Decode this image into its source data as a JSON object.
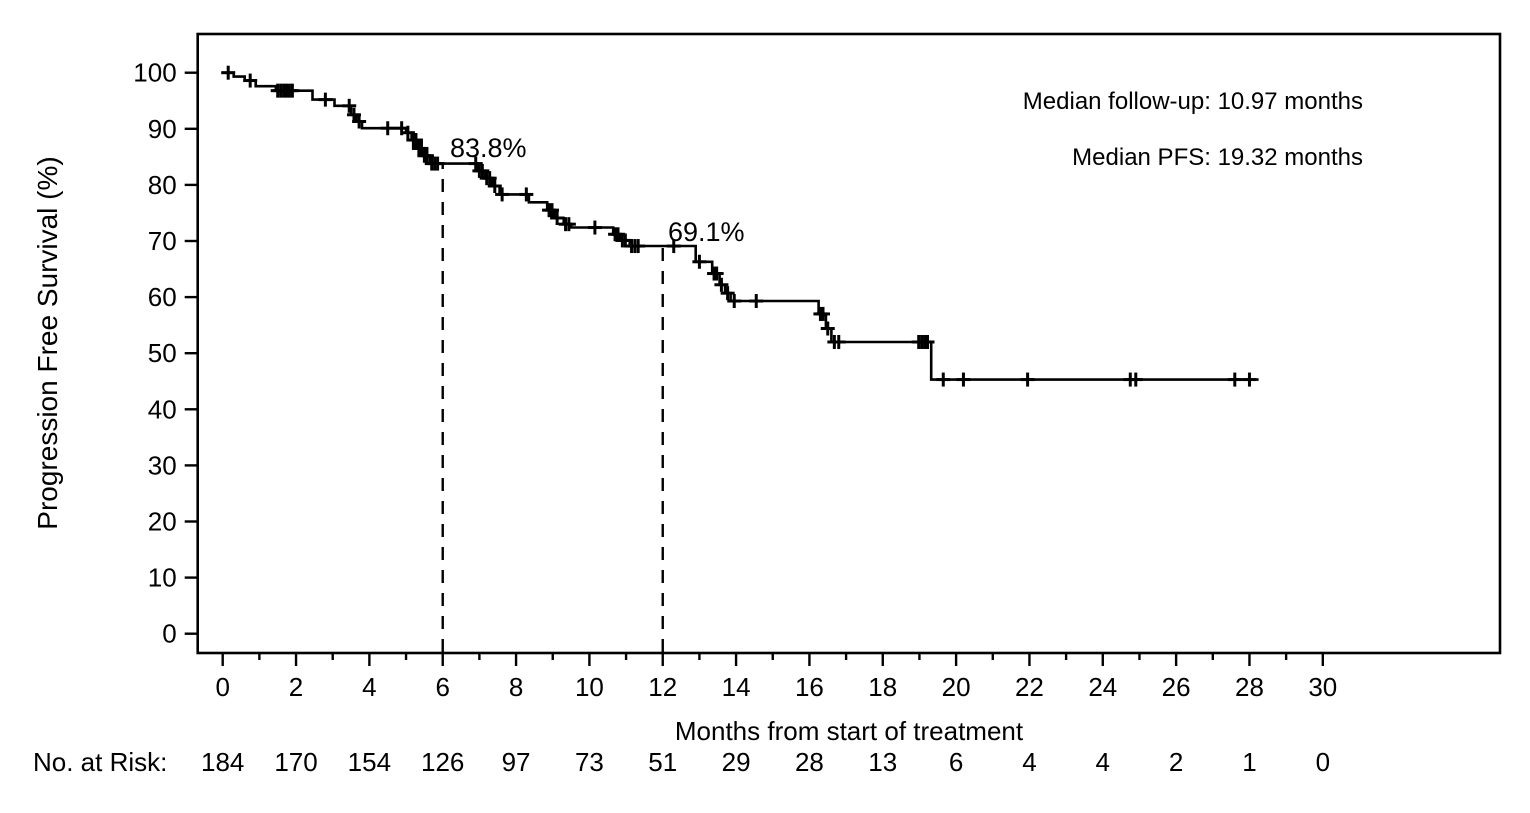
{
  "page": {
    "background": "#ffffff",
    "ink_color": "#000000"
  },
  "chart_data": {
    "type": "line",
    "subtype": "kaplan_meier_step_curve",
    "title": "",
    "xlabel": "Months from start of treatment",
    "ylabel": "Progression Free Survival (%)",
    "xlim": [
      0,
      34.8
    ],
    "ylim": [
      0,
      100
    ],
    "grid": false,
    "x_major_ticks": [
      0,
      2,
      4,
      6,
      8,
      10,
      12,
      14,
      16,
      18,
      20,
      22,
      24,
      26,
      28,
      30
    ],
    "x_minor_ticks": [
      1,
      3,
      5,
      7,
      9,
      11,
      13,
      15,
      17,
      19,
      21,
      23,
      25,
      27,
      29
    ],
    "y_ticks": [
      0,
      10,
      20,
      30,
      40,
      50,
      60,
      70,
      80,
      90,
      100
    ],
    "annotations": [
      "Median follow-up: 10.97 months",
      "Median PFS: 19.32 months"
    ],
    "reference_lines": [
      {
        "x": 6,
        "y_top": 83.8,
        "style": "dashed",
        "label": "83.8%"
      },
      {
        "x": 12,
        "y_top": 69.1,
        "style": "dashed",
        "label": "69.1%"
      }
    ],
    "series": [
      {
        "name": "Progression Free Survival",
        "color": "#000000",
        "steps": [
          [
            0,
            100
          ],
          [
            0.3,
            99.3
          ],
          [
            0.6,
            98.6
          ],
          [
            0.9,
            97.6
          ],
          [
            1.45,
            96.8
          ],
          [
            2.45,
            95.2
          ],
          [
            3.05,
            94.1
          ],
          [
            3.5,
            92.5
          ],
          [
            3.65,
            91.3
          ],
          [
            3.8,
            90.1
          ],
          [
            5.0,
            89.3
          ],
          [
            5.15,
            88.0
          ],
          [
            5.3,
            86.5
          ],
          [
            5.45,
            85.2
          ],
          [
            5.65,
            83.8
          ],
          [
            6.95,
            82.5
          ],
          [
            7.15,
            81.2
          ],
          [
            7.35,
            79.8
          ],
          [
            7.55,
            78.3
          ],
          [
            8.35,
            76.9
          ],
          [
            8.85,
            75.5
          ],
          [
            9.05,
            74.1
          ],
          [
            9.3,
            73.0
          ],
          [
            9.5,
            72.4
          ],
          [
            10.65,
            71.2
          ],
          [
            10.85,
            70.1
          ],
          [
            11.1,
            69.1
          ],
          [
            12.9,
            66.3
          ],
          [
            13.35,
            64.2
          ],
          [
            13.55,
            62.2
          ],
          [
            13.7,
            60.7
          ],
          [
            13.85,
            59.3
          ],
          [
            16.25,
            57.0
          ],
          [
            16.45,
            54.4
          ],
          [
            16.6,
            52.0
          ],
          [
            19.32,
            45.3
          ],
          [
            28.25,
            45.3
          ]
        ],
        "censor_marks": [
          [
            0.15,
            100
          ],
          [
            0.75,
            98.6
          ],
          [
            1.5,
            96.8
          ],
          [
            1.58,
            96.8
          ],
          [
            1.66,
            96.8
          ],
          [
            1.74,
            96.8
          ],
          [
            1.82,
            96.8
          ],
          [
            1.9,
            96.8
          ],
          [
            2.8,
            95.2
          ],
          [
            3.45,
            94.1
          ],
          [
            3.58,
            92.5
          ],
          [
            3.72,
            91.3
          ],
          [
            4.5,
            90.1
          ],
          [
            4.88,
            90.1
          ],
          [
            5.05,
            89.3
          ],
          [
            5.2,
            88.0
          ],
          [
            5.27,
            88.0
          ],
          [
            5.35,
            86.5
          ],
          [
            5.42,
            86.5
          ],
          [
            5.5,
            85.2
          ],
          [
            5.57,
            85.2
          ],
          [
            5.7,
            83.8
          ],
          [
            5.78,
            83.8
          ],
          [
            5.86,
            83.8
          ],
          [
            6.9,
            83.8
          ],
          [
            7.0,
            82.5
          ],
          [
            7.08,
            82.5
          ],
          [
            7.2,
            81.2
          ],
          [
            7.28,
            81.2
          ],
          [
            7.42,
            79.8
          ],
          [
            7.62,
            78.3
          ],
          [
            8.28,
            78.3
          ],
          [
            8.9,
            75.5
          ],
          [
            8.98,
            75.5
          ],
          [
            9.12,
            74.1
          ],
          [
            9.35,
            73.0
          ],
          [
            9.44,
            73.0
          ],
          [
            10.15,
            72.4
          ],
          [
            10.7,
            71.2
          ],
          [
            10.78,
            71.2
          ],
          [
            10.9,
            70.1
          ],
          [
            10.98,
            70.1
          ],
          [
            11.15,
            69.1
          ],
          [
            11.24,
            69.1
          ],
          [
            11.33,
            69.1
          ],
          [
            12.3,
            69.1
          ],
          [
            13.0,
            66.3
          ],
          [
            13.4,
            64.2
          ],
          [
            13.47,
            64.2
          ],
          [
            13.6,
            62.2
          ],
          [
            13.77,
            60.7
          ],
          [
            13.95,
            59.3
          ],
          [
            14.55,
            59.3
          ],
          [
            16.3,
            57.0
          ],
          [
            16.37,
            57.0
          ],
          [
            16.5,
            54.4
          ],
          [
            16.68,
            52.0
          ],
          [
            16.8,
            52.0
          ],
          [
            18.98,
            52.0
          ],
          [
            19.06,
            52.0
          ],
          [
            19.14,
            52.0
          ],
          [
            19.22,
            52.0
          ],
          [
            19.65,
            45.3
          ],
          [
            20.2,
            45.3
          ],
          [
            21.95,
            45.3
          ],
          [
            24.75,
            45.3
          ],
          [
            24.9,
            45.3
          ],
          [
            27.6,
            45.3
          ],
          [
            28.0,
            45.3
          ]
        ]
      }
    ],
    "risk_table": {
      "label": "No. at Risk:",
      "times": [
        0,
        2,
        4,
        6,
        8,
        10,
        12,
        14,
        16,
        18,
        20,
        22,
        24,
        26,
        28,
        30
      ],
      "counts": [
        184,
        170,
        154,
        126,
        97,
        73,
        51,
        29,
        28,
        13,
        6,
        4,
        4,
        2,
        1,
        0
      ]
    }
  }
}
